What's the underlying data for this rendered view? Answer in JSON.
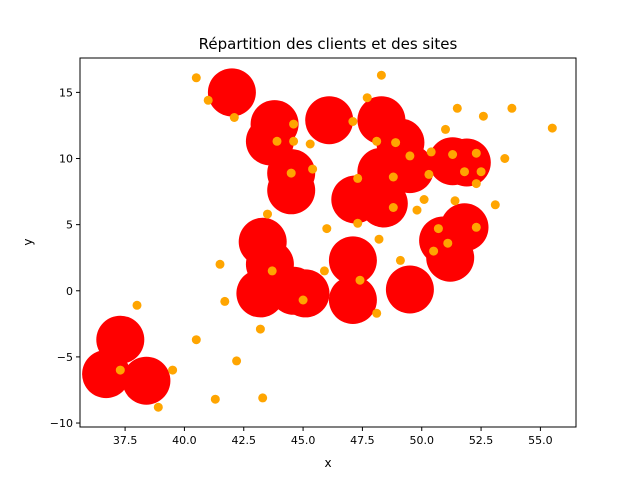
{
  "chart_data": {
    "type": "scatter",
    "title": "Répartition des clients et des sites",
    "xlabel": "x",
    "ylabel": "y",
    "xlim": [
      35.6,
      56.5
    ],
    "ylim": [
      -10.3,
      17.6
    ],
    "xticks": [
      37.5,
      40.0,
      42.5,
      45.0,
      47.5,
      50.0,
      52.5,
      55.0
    ],
    "xtick_labels": [
      "37.5",
      "40.0",
      "42.5",
      "45.0",
      "47.5",
      "50.0",
      "52.5",
      "55.0"
    ],
    "yticks": [
      -10,
      -5,
      0,
      5,
      10,
      15
    ],
    "ytick_labels": [
      "−10",
      "−5",
      "0",
      "5",
      "10",
      "15"
    ],
    "grid": false,
    "series": [
      {
        "role": "sites",
        "color": "#ff0000",
        "points": [
          [
            42.0,
            15.0
          ],
          [
            43.8,
            12.6
          ],
          [
            43.6,
            11.3
          ],
          [
            46.1,
            12.9
          ],
          [
            48.3,
            12.9
          ],
          [
            49.1,
            11.2
          ],
          [
            48.3,
            9.0
          ],
          [
            49.5,
            9.2
          ],
          [
            51.3,
            9.8
          ],
          [
            51.9,
            9.7
          ],
          [
            44.5,
            8.9
          ],
          [
            44.5,
            7.6
          ],
          [
            47.2,
            6.9
          ],
          [
            48.4,
            6.6
          ],
          [
            50.9,
            3.8
          ],
          [
            51.8,
            4.8
          ],
          [
            51.2,
            2.5
          ],
          [
            43.3,
            3.7
          ],
          [
            43.6,
            2.0
          ],
          [
            43.2,
            -0.2
          ],
          [
            44.6,
            0.0
          ],
          [
            45.1,
            -0.2
          ],
          [
            47.1,
            2.3
          ],
          [
            47.1,
            -0.7
          ],
          [
            49.5,
            0.1
          ],
          [
            37.3,
            -3.7
          ],
          [
            36.7,
            -6.3
          ],
          [
            38.4,
            -6.8
          ]
        ]
      },
      {
        "role": "clients",
        "color": "#ffa500",
        "points": [
          [
            40.5,
            16.1
          ],
          [
            48.3,
            16.3
          ],
          [
            41.0,
            14.4
          ],
          [
            47.7,
            14.6
          ],
          [
            42.1,
            13.1
          ],
          [
            51.5,
            13.8
          ],
          [
            52.6,
            13.2
          ],
          [
            53.8,
            13.8
          ],
          [
            47.1,
            12.8
          ],
          [
            44.6,
            12.6
          ],
          [
            55.5,
            12.3
          ],
          [
            51.0,
            12.2
          ],
          [
            43.9,
            11.3
          ],
          [
            44.6,
            11.3
          ],
          [
            45.3,
            11.1
          ],
          [
            48.1,
            11.3
          ],
          [
            48.9,
            11.2
          ],
          [
            49.5,
            10.2
          ],
          [
            50.4,
            10.5
          ],
          [
            51.3,
            10.3
          ],
          [
            52.3,
            10.4
          ],
          [
            53.5,
            10.0
          ],
          [
            45.4,
            9.2
          ],
          [
            51.8,
            9.0
          ],
          [
            52.5,
            9.0
          ],
          [
            44.5,
            8.9
          ],
          [
            47.3,
            8.5
          ],
          [
            48.8,
            8.6
          ],
          [
            50.3,
            8.8
          ],
          [
            52.3,
            8.1
          ],
          [
            51.4,
            6.8
          ],
          [
            53.1,
            6.5
          ],
          [
            48.8,
            6.3
          ],
          [
            49.8,
            6.1
          ],
          [
            50.1,
            6.9
          ],
          [
            43.5,
            5.8
          ],
          [
            47.3,
            5.1
          ],
          [
            46.0,
            4.7
          ],
          [
            50.7,
            4.7
          ],
          [
            52.3,
            4.8
          ],
          [
            48.2,
            3.9
          ],
          [
            51.1,
            3.6
          ],
          [
            50.5,
            3.0
          ],
          [
            49.1,
            2.3
          ],
          [
            41.5,
            2.0
          ],
          [
            43.7,
            1.5
          ],
          [
            45.9,
            1.5
          ],
          [
            47.4,
            0.8
          ],
          [
            45.0,
            -0.7
          ],
          [
            41.7,
            -0.8
          ],
          [
            38.0,
            -1.1
          ],
          [
            48.1,
            -1.7
          ],
          [
            43.2,
            -2.9
          ],
          [
            40.5,
            -3.7
          ],
          [
            42.2,
            -5.3
          ],
          [
            37.3,
            -6.0
          ],
          [
            39.5,
            -6.0
          ],
          [
            43.3,
            -8.1
          ],
          [
            41.3,
            -8.2
          ],
          [
            38.9,
            -8.8
          ]
        ]
      }
    ]
  }
}
